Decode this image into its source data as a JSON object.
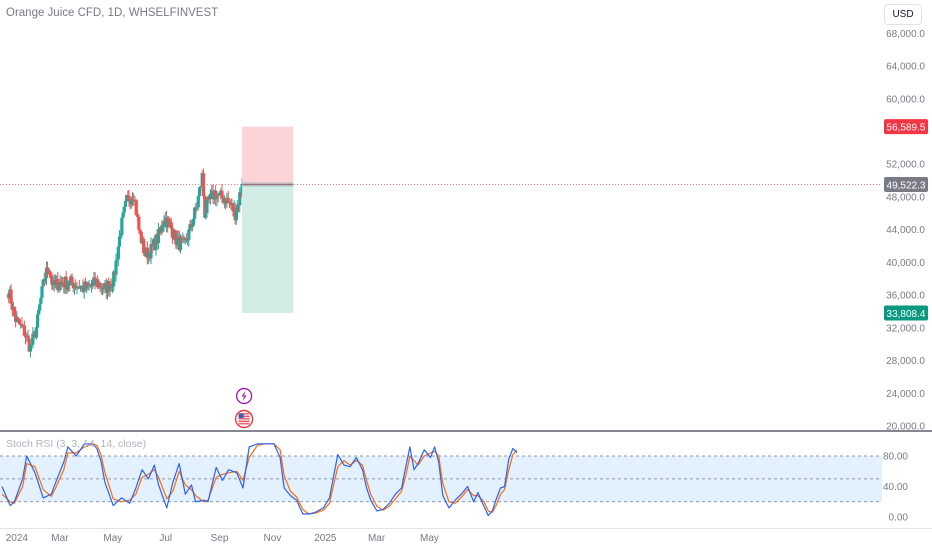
{
  "header": {
    "symbol_title": "Orange Juice CFD, 1D, WHSELFINVEST",
    "currency": "USD"
  },
  "colors": {
    "up": "#26a69a",
    "down": "#ef5350",
    "stop_zone": "#fbd4d7",
    "target_zone": "#d1ede6",
    "stop_label_bg": "#f23645",
    "target_label_bg": "#089981",
    "last_price_bg": "#787b86",
    "rsi_k": "#2962ff",
    "rsi_d": "#ff6d00",
    "rsi_band": "#e3f0fd"
  },
  "icons": {
    "events": [
      "lightning-event-icon",
      "us-flag-event-icon"
    ]
  },
  "chart_data": [
    {
      "type": "candlestick",
      "title": "Orange Juice CFD, 1D, WHSELFINVEST",
      "yaxis_ticks": [
        "68,000.0",
        "64,000.0",
        "60,000.0",
        "52,000.0",
        "48,000.0",
        "44,000.0",
        "40,000.0",
        "36,000.0",
        "32,000.0",
        "28,000.0",
        "24,000.0",
        "20,000.0"
      ],
      "xaxis_ticks": [
        "2024",
        "Mar",
        "May",
        "Jul",
        "Sep",
        "Nov",
        "2025",
        "Mar",
        "May"
      ],
      "ylim": [
        19500,
        70000
      ],
      "price_labels": {
        "stop": "56,589.5",
        "last": "49,522.3",
        "target": "33,808.4"
      },
      "position": {
        "type": "short",
        "entry": 49522.3,
        "stop": 56589.5,
        "target": 33808.4,
        "start": "2024-09-27",
        "end": "2024-11-25"
      },
      "series_close_path": [
        [
          "2024-01-02",
          36500
        ],
        [
          "2024-01-10",
          33000
        ],
        [
          "2024-01-20",
          31500
        ],
        [
          "2024-01-27",
          29500
        ],
        [
          "2024-02-03",
          32000
        ],
        [
          "2024-02-08",
          35500
        ],
        [
          "2024-02-12",
          38000
        ],
        [
          "2024-02-17",
          39500
        ],
        [
          "2024-02-22",
          37000
        ],
        [
          "2024-02-29",
          37500
        ],
        [
          "2024-03-15",
          37500
        ],
        [
          "2024-03-29",
          36800
        ],
        [
          "2024-04-12",
          37500
        ],
        [
          "2024-04-22",
          36800
        ],
        [
          "2024-05-02",
          38000
        ],
        [
          "2024-05-10",
          44000
        ],
        [
          "2024-05-17",
          47500
        ],
        [
          "2024-05-25",
          48500
        ],
        [
          "2024-05-31",
          44000
        ],
        [
          "2024-06-07",
          41000
        ],
        [
          "2024-06-14",
          41500
        ],
        [
          "2024-06-24",
          43500
        ],
        [
          "2024-06-29",
          45500
        ],
        [
          "2024-07-06",
          44500
        ],
        [
          "2024-07-14",
          42500
        ],
        [
          "2024-07-22",
          42000
        ],
        [
          "2024-07-29",
          44000
        ],
        [
          "2024-08-06",
          47000
        ],
        [
          "2024-08-12",
          50500
        ],
        [
          "2024-08-15",
          46000
        ],
        [
          "2024-08-20",
          47500
        ],
        [
          "2024-08-26",
          48500
        ],
        [
          "2024-09-01",
          48000
        ],
        [
          "2024-09-08",
          47800
        ],
        [
          "2024-09-14",
          47000
        ],
        [
          "2024-09-19",
          46000
        ],
        [
          "2024-09-23",
          47500
        ],
        [
          "2024-09-27",
          49522.3
        ]
      ]
    },
    {
      "type": "line",
      "title": "Stoch RSI (3, 3, 14, 14, close)",
      "yaxis_ticks": [
        "80.00",
        "40.00",
        "0.00"
      ],
      "band": [
        20,
        80
      ],
      "ylim": [
        -8,
        97
      ],
      "series": [
        {
          "values": [
            [
              0,
              40
            ],
            [
              4,
              15
            ],
            [
              6,
              20
            ],
            [
              10,
              50
            ],
            [
              12,
              80
            ],
            [
              16,
              58
            ],
            [
              20,
              25
            ],
            [
              24,
              30
            ],
            [
              26,
              45
            ],
            [
              30,
              72
            ],
            [
              32,
              92
            ],
            [
              36,
              80
            ],
            [
              40,
              96
            ],
            [
              44,
              96
            ],
            [
              46,
              90
            ],
            [
              48,
              74
            ],
            [
              50,
              45
            ],
            [
              54,
              15
            ],
            [
              58,
              25
            ],
            [
              62,
              18
            ],
            [
              65,
              38
            ],
            [
              68,
              62
            ],
            [
              71,
              50
            ],
            [
              74,
              68
            ],
            [
              76,
              42
            ],
            [
              80,
              12
            ],
            [
              83,
              46
            ],
            [
              86,
              70
            ],
            [
              89,
              30
            ],
            [
              92,
              42
            ],
            [
              94,
              20
            ],
            [
              98,
              22
            ],
            [
              100,
              20
            ],
            [
              104,
              65
            ],
            [
              107,
              48
            ],
            [
              110,
              62
            ],
            [
              114,
              58
            ],
            [
              117,
              38
            ],
            [
              120,
              92
            ],
            [
              124,
              96
            ],
            [
              128,
              96
            ],
            [
              132,
              96
            ],
            [
              135,
              78
            ],
            [
              137,
              38
            ],
            [
              140,
              28
            ],
            [
              143,
              22
            ],
            [
              146,
              4
            ],
            [
              149,
              4
            ],
            [
              152,
              6
            ],
            [
              156,
              12
            ],
            [
              159,
              25
            ],
            [
              163,
              82
            ],
            [
              166,
              68
            ],
            [
              169,
              66
            ],
            [
              172,
              78
            ],
            [
              175,
              62
            ],
            [
              177,
              38
            ],
            [
              179,
              22
            ],
            [
              182,
              8
            ],
            [
              185,
              10
            ],
            [
              188,
              18
            ],
            [
              191,
              30
            ],
            [
              194,
              38
            ],
            [
              196,
              66
            ],
            [
              198,
              92
            ],
            [
              200,
              62
            ],
            [
              202,
              70
            ],
            [
              205,
              88
            ],
            [
              208,
              78
            ],
            [
              210,
              92
            ],
            [
              212,
              72
            ],
            [
              214,
              28
            ],
            [
              217,
              12
            ],
            [
              220,
              22
            ],
            [
              223,
              30
            ],
            [
              226,
              40
            ],
            [
              229,
              20
            ],
            [
              231,
              32
            ],
            [
              234,
              14
            ],
            [
              236,
              2
            ],
            [
              238,
              8
            ],
            [
              240,
              24
            ],
            [
              242,
              38
            ],
            [
              244,
              40
            ],
            [
              246,
              76
            ],
            [
              248,
              90
            ],
            [
              250,
              84
            ]
          ]
        },
        {
          "values": [
            [
              0,
              30
            ],
            [
              4,
              20
            ],
            [
              6,
              18
            ],
            [
              10,
              40
            ],
            [
              12,
              70
            ],
            [
              16,
              66
            ],
            [
              20,
              36
            ],
            [
              24,
              27
            ],
            [
              26,
              38
            ],
            [
              30,
              62
            ],
            [
              32,
              84
            ],
            [
              36,
              84
            ],
            [
              40,
              92
            ],
            [
              44,
              96
            ],
            [
              46,
              94
            ],
            [
              48,
              82
            ],
            [
              50,
              58
            ],
            [
              54,
              24
            ],
            [
              58,
              20
            ],
            [
              62,
              22
            ],
            [
              65,
              30
            ],
            [
              68,
              52
            ],
            [
              71,
              56
            ],
            [
              74,
              62
            ],
            [
              76,
              52
            ],
            [
              80,
              24
            ],
            [
              83,
              34
            ],
            [
              86,
              60
            ],
            [
              89,
              42
            ],
            [
              92,
              36
            ],
            [
              94,
              28
            ],
            [
              98,
              20
            ],
            [
              100,
              22
            ],
            [
              104,
              52
            ],
            [
              107,
              56
            ],
            [
              110,
              58
            ],
            [
              114,
              60
            ],
            [
              117,
              48
            ],
            [
              120,
              78
            ],
            [
              124,
              94
            ],
            [
              128,
              96
            ],
            [
              132,
              96
            ],
            [
              135,
              88
            ],
            [
              137,
              54
            ],
            [
              140,
              34
            ],
            [
              143,
              26
            ],
            [
              146,
              10
            ],
            [
              149,
              4
            ],
            [
              152,
              5
            ],
            [
              156,
              9
            ],
            [
              159,
              18
            ],
            [
              163,
              66
            ],
            [
              166,
              74
            ],
            [
              169,
              68
            ],
            [
              172,
              74
            ],
            [
              175,
              68
            ],
            [
              177,
              48
            ],
            [
              179,
              30
            ],
            [
              182,
              14
            ],
            [
              185,
              9
            ],
            [
              188,
              14
            ],
            [
              191,
              24
            ],
            [
              194,
              34
            ],
            [
              196,
              54
            ],
            [
              198,
              80
            ],
            [
              200,
              74
            ],
            [
              202,
              68
            ],
            [
              205,
              80
            ],
            [
              208,
              84
            ],
            [
              210,
              86
            ],
            [
              212,
              80
            ],
            [
              214,
              44
            ],
            [
              217,
              20
            ],
            [
              220,
              18
            ],
            [
              223,
              26
            ],
            [
              226,
              36
            ],
            [
              229,
              28
            ],
            [
              231,
              28
            ],
            [
              234,
              20
            ],
            [
              236,
              8
            ],
            [
              238,
              6
            ],
            [
              240,
              16
            ],
            [
              242,
              30
            ],
            [
              244,
              36
            ],
            [
              246,
              62
            ],
            [
              248,
              82
            ],
            [
              250,
              88
            ]
          ]
        }
      ]
    }
  ]
}
